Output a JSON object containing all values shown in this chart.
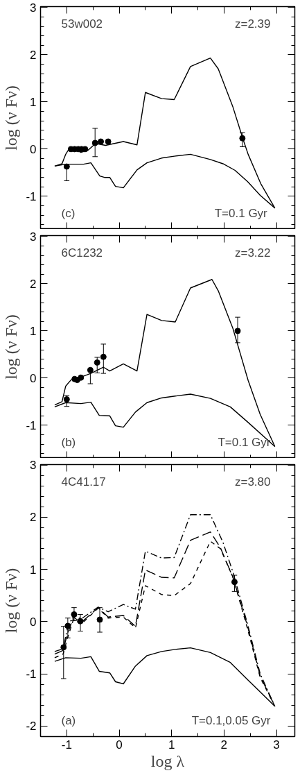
{
  "chart_data": [
    {
      "type": "line",
      "ylabel": "log (ν Fν)",
      "xlim": [
        -1.5,
        3.35
      ],
      "xticks": [
        -1,
        0,
        1,
        2,
        3
      ],
      "ylim": [
        -1.7,
        3.02
      ],
      "yticks": [
        -1,
        0,
        1,
        2,
        3
      ],
      "tick_labels": "y",
      "annotations": [
        "53w002",
        "z=2.39",
        "(c)",
        "T=0.1  Gyr"
      ],
      "series": [
        {
          "color": "#000000",
          "line_style": "solid",
          "x": [
            -1.23,
            -1.09,
            -1.02,
            -0.97,
            -0.83,
            -0.73,
            -0.59,
            -0.45,
            -0.26,
            0.08,
            0.34,
            0.5,
            0.81,
            1.05,
            1.36,
            1.74,
            1.89,
            2.17,
            2.36,
            2.46,
            2.7,
            2.97
          ],
          "values": [
            -0.36,
            -0.31,
            -0.11,
            -0.02,
            -0.01,
            -0.07,
            -0.02,
            0.12,
            0.08,
            0.16,
            0.09,
            1.2,
            1.07,
            1.05,
            1.75,
            1.93,
            1.7,
            0.89,
            0.22,
            -0.11,
            -0.73,
            -1.25
          ]
        },
        {
          "color": "#000000",
          "line_style": "solid",
          "x": [
            -1.23,
            -1.02,
            -0.83,
            -0.68,
            -0.54,
            -0.37,
            -0.28,
            -0.18,
            -0.07,
            0.08,
            0.34,
            0.53,
            0.81,
            1.05,
            1.36,
            1.74,
            1.98,
            2.21,
            2.45,
            2.69,
            2.97
          ],
          "values": [
            -0.36,
            -0.32,
            -0.32,
            -0.32,
            -0.29,
            -0.57,
            -0.6,
            -0.6,
            -0.79,
            -0.82,
            -0.44,
            -0.29,
            -0.19,
            -0.15,
            -0.11,
            -0.22,
            -0.31,
            -0.45,
            -0.69,
            -0.98,
            -1.25
          ]
        },
        {
          "type": "scatter",
          "color": "#000000",
          "marker": "circle",
          "x": [
            -1.0,
            -0.92,
            -0.85,
            -0.78,
            -0.72,
            -0.65,
            -0.46,
            -0.35,
            -0.21,
            2.35
          ],
          "values": [
            -0.37,
            0.0,
            0.0,
            0.0,
            0.0,
            0.0,
            0.13,
            0.16,
            0.16,
            0.23
          ],
          "errors": [
            [
              -0.67,
              -0.37
            ],
            null,
            null,
            null,
            null,
            null,
            [
              -0.16,
              0.44
            ],
            null,
            null,
            [
              0.05,
              0.35
            ]
          ]
        }
      ]
    },
    {
      "type": "line",
      "ylabel": "log (ν Fν)",
      "xlim": [
        -1.5,
        3.35
      ],
      "xticks": [
        -1,
        0,
        1,
        2,
        3
      ],
      "ylim": [
        -1.7,
        3.02
      ],
      "yticks": [
        -1,
        0,
        1,
        2,
        3
      ],
      "tick_labels": "y",
      "annotations": [
        "6C1232",
        "z=3.22",
        "(b)",
        "T=0.1 Gyr"
      ],
      "series": [
        {
          "color": "#000000",
          "line_style": "solid",
          "x": [
            -1.23,
            -1.09,
            -1.02,
            -0.92,
            -0.78,
            -0.54,
            -0.3,
            -0.18,
            0.08,
            0.34,
            0.53,
            0.81,
            1.07,
            1.36,
            1.77,
            1.89,
            2.17,
            2.46,
            2.69,
            2.97
          ],
          "values": [
            -0.57,
            -0.5,
            -0.17,
            -0.04,
            0.0,
            0.1,
            0.23,
            0.15,
            0.3,
            0.15,
            1.35,
            1.22,
            1.19,
            1.91,
            2.09,
            1.85,
            1.05,
            -0.05,
            -0.77,
            -1.45
          ]
        },
        {
          "color": "#000000",
          "line_style": "solid",
          "x": [
            -1.23,
            -1.02,
            -0.73,
            -0.54,
            -0.38,
            -0.18,
            -0.07,
            0.08,
            0.31,
            0.53,
            0.81,
            1.07,
            1.36,
            1.74,
            2.12,
            2.45,
            2.97
          ],
          "values": [
            -0.61,
            -0.52,
            -0.54,
            -0.51,
            -0.79,
            -0.8,
            -1.01,
            -1.04,
            -0.72,
            -0.52,
            -0.42,
            -0.38,
            -0.34,
            -0.43,
            -0.61,
            -0.93,
            -1.45
          ]
        },
        {
          "type": "scatter",
          "color": "#000000",
          "marker": "circle",
          "x": [
            -1.0,
            -0.85,
            -0.8,
            -0.73,
            -0.55,
            -0.42,
            -0.3,
            2.26
          ],
          "values": [
            -0.45,
            -0.02,
            -0.04,
            0.01,
            0.17,
            0.33,
            0.45,
            1.0
          ],
          "errors": [
            [
              -0.6,
              -0.37
            ],
            null,
            null,
            null,
            [
              -0.12,
              0.17
            ],
            [
              0.11,
              0.44
            ],
            [
              0.1,
              0.72
            ],
            [
              0.75,
              1.29
            ]
          ]
        }
      ]
    },
    {
      "type": "line",
      "ylabel": "log (ν Fν)",
      "xlabel": "log λ",
      "xlim": [
        -1.5,
        3.35
      ],
      "xticks": [
        -1,
        0,
        1,
        2,
        3
      ],
      "ylim": [
        -2.2,
        3.01
      ],
      "yticks": [
        -2,
        -1,
        0,
        1,
        2,
        3
      ],
      "annotations": [
        "4C41.17",
        "z=3.80",
        "(a)",
        "T=0.1,0.05 Gyr"
      ],
      "series": [
        {
          "color": "#000000",
          "line_style": "dashdot",
          "x": [
            -1.23,
            -1.07,
            -0.99,
            -0.87,
            -0.73,
            -0.4,
            -0.21,
            0.08,
            0.31,
            0.5,
            0.81,
            1.05,
            1.36,
            1.74,
            1.98,
            2.17,
            2.45,
            2.69,
            2.97
          ],
          "values": [
            -0.57,
            -0.52,
            -0.14,
            0.14,
            0.05,
            0.28,
            0.19,
            0.33,
            0.24,
            1.35,
            1.22,
            1.23,
            2.05,
            2.05,
            1.52,
            0.95,
            -0.05,
            -1.0,
            -1.62
          ]
        },
        {
          "color": "#000000",
          "line_style": "longdash",
          "x": [
            -1.23,
            -1.07,
            -0.99,
            -0.87,
            -0.73,
            -0.4,
            -0.21,
            0.08,
            0.31,
            0.5,
            0.81,
            1.05,
            1.36,
            1.74,
            1.93,
            2.17,
            2.45,
            2.69,
            2.97
          ],
          "values": [
            -0.62,
            -0.55,
            -0.24,
            0.09,
            -0.02,
            0.27,
            0.09,
            0.12,
            -0.09,
            0.99,
            0.85,
            0.84,
            1.56,
            1.72,
            1.42,
            0.85,
            -0.09,
            -1.04,
            -1.62
          ]
        },
        {
          "color": "#000000",
          "line_style": "dashed",
          "x": [
            -1.23,
            -1.07,
            -0.99,
            -0.87,
            -0.73,
            -0.4,
            -0.21,
            0.08,
            0.31,
            0.5,
            0.81,
            1.05,
            1.36,
            1.74,
            1.93,
            2.17,
            2.45,
            2.69,
            2.97
          ],
          "values": [
            -0.69,
            -0.62,
            -0.33,
            0.05,
            -0.05,
            0.26,
            0.07,
            0.09,
            -0.12,
            0.69,
            0.52,
            0.5,
            0.73,
            1.54,
            1.4,
            0.85,
            -0.14,
            -1.07,
            -1.62
          ]
        },
        {
          "color": "#000000",
          "line_style": "solid",
          "x": [
            -1.23,
            -1.02,
            -0.73,
            -0.54,
            -0.38,
            -0.18,
            -0.07,
            0.08,
            0.31,
            0.53,
            0.81,
            1.07,
            1.36,
            1.74,
            2.12,
            2.45,
            2.97
          ],
          "values": [
            -0.76,
            -0.69,
            -0.7,
            -0.67,
            -0.95,
            -0.98,
            -1.15,
            -1.19,
            -0.85,
            -0.65,
            -0.57,
            -0.53,
            -0.5,
            -0.59,
            -0.78,
            -1.11,
            -1.62
          ]
        },
        {
          "type": "scatter",
          "color": "#000000",
          "marker": "circle",
          "x": [
            -1.06,
            -0.98,
            -0.86,
            -0.74,
            -0.37,
            2.2
          ],
          "values": [
            -0.49,
            -0.08,
            0.14,
            0.01,
            0.04,
            0.76
          ],
          "errors": [
            [
              -1.09,
              -0.09
            ],
            [
              -0.31,
              0.07
            ],
            [
              0.02,
              0.27
            ],
            [
              -0.18,
              0.14
            ],
            [
              -0.2,
              0.27
            ],
            [
              0.58,
              0.89
            ]
          ]
        }
      ]
    }
  ]
}
